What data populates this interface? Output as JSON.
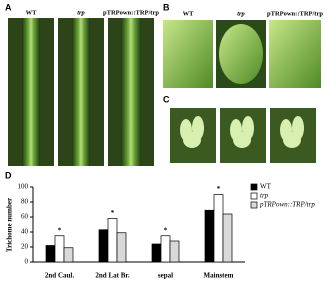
{
  "panel_labels": [
    "A",
    "B",
    "C"
  ],
  "photo_labels": {
    "A": [
      "WT",
      "trp",
      "pTRPown::TRP/trp"
    ],
    "B": [
      "WT",
      "trp",
      "pTRPown::TRP/trp"
    ]
  },
  "chart_data": {
    "type": "bar",
    "panel_label": "D",
    "y_label": "Trichome number",
    "categories": [
      "2nd Caul.",
      "2nd Lat Br.",
      "sepal",
      "Mainstem"
    ],
    "series": [
      {
        "name": "WT",
        "color": "#000000",
        "values": [
          22,
          43,
          24,
          69
        ]
      },
      {
        "name": "trp",
        "color": "#ffffff",
        "values": [
          35,
          58,
          35,
          90
        ],
        "significance": [
          "*",
          "*",
          "*",
          "*"
        ]
      },
      {
        "name": "pTRPown::TRP/trp",
        "color": "#d9d9d9",
        "values": [
          19,
          39,
          28,
          64
        ]
      }
    ],
    "ylim": [
      0,
      100
    ],
    "yticks": [
      0,
      20,
      40,
      60,
      80,
      100
    ],
    "legend": "top-right"
  }
}
